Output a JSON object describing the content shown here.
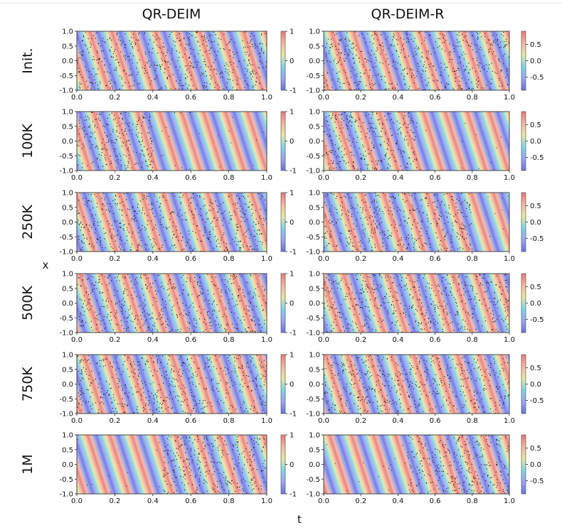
{
  "figure": {
    "column_titles": [
      "QR-DEIM",
      "QR-DEIM-R"
    ],
    "row_titles": [
      "Init.",
      "100K",
      "250K",
      "500K",
      "750K",
      "1M"
    ],
    "xlabel": "t",
    "ylabel": "x",
    "colors": {
      "colormap": [
        "#6b73e0",
        "#9aa5f0",
        "#7fd6e8",
        "#e8e8a0",
        "#f5b7a0",
        "#e87a78"
      ],
      "point": "#111111"
    }
  },
  "chart_data": {
    "type": "heatmap",
    "description_of_field": "traveling wave u(x,t) with collocation points overlaid",
    "xlim": [
      0.0,
      1.0
    ],
    "ylim": [
      -1.0,
      1.0
    ],
    "x_ticks": [
      "0.0",
      "0.2",
      "0.4",
      "0.6",
      "0.8",
      "1.0"
    ],
    "y_ticks": [
      "1.0",
      "0.5",
      "0.0",
      "-0.5",
      "-1.0"
    ],
    "colorbars": [
      {
        "column": "QR-DEIM",
        "range": [
          -1,
          1
        ],
        "ticks": [
          "1",
          "0",
          "-1"
        ]
      },
      {
        "column": "QR-DEIM-R",
        "range": [
          -0.9,
          0.9
        ],
        "ticks": [
          "0.5",
          "0.0",
          "-0.5"
        ]
      }
    ],
    "stripe_count_approx": 20,
    "panels": [
      {
        "row": "Init.",
        "column": "QR-DEIM",
        "points_extent_t": [
          0.0,
          1.0
        ]
      },
      {
        "row": "Init.",
        "column": "QR-DEIM-R",
        "points_extent_t": [
          0.0,
          1.0
        ]
      },
      {
        "row": "100K",
        "column": "QR-DEIM",
        "points_extent_t": [
          0.0,
          0.4
        ]
      },
      {
        "row": "100K",
        "column": "QR-DEIM-R",
        "points_extent_t": [
          0.0,
          0.5
        ]
      },
      {
        "row": "250K",
        "column": "QR-DEIM",
        "points_extent_t": [
          0.0,
          1.0
        ]
      },
      {
        "row": "250K",
        "column": "QR-DEIM-R",
        "points_extent_t": [
          0.0,
          0.8
        ]
      },
      {
        "row": "500K",
        "column": "QR-DEIM",
        "points_extent_t": [
          0.0,
          1.0
        ]
      },
      {
        "row": "500K",
        "column": "QR-DEIM-R",
        "points_extent_t": [
          0.0,
          1.0
        ]
      },
      {
        "row": "750K",
        "column": "QR-DEIM",
        "points_extent_t": [
          0.0,
          1.0
        ]
      },
      {
        "row": "750K",
        "column": "QR-DEIM-R",
        "points_extent_t": [
          0.0,
          1.0
        ]
      },
      {
        "row": "1M",
        "column": "QR-DEIM",
        "points_extent_t": [
          0.45,
          1.0
        ]
      },
      {
        "row": "1M",
        "column": "QR-DEIM-R",
        "points_extent_t": [
          0.45,
          1.0
        ]
      }
    ]
  }
}
